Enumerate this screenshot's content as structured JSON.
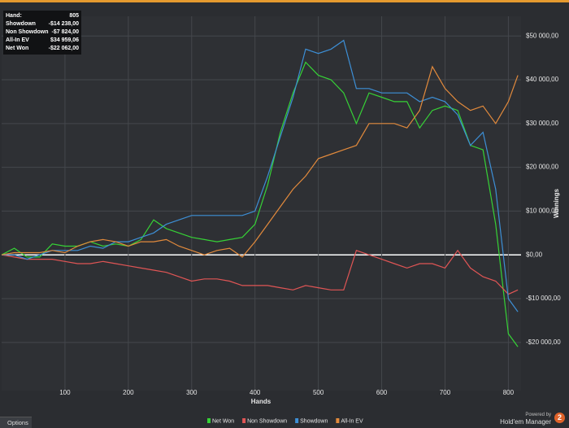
{
  "chart_data": {
    "type": "line",
    "x_label": "Hands",
    "y_label": "Winnings",
    "x": [
      0,
      20,
      40,
      60,
      80,
      100,
      120,
      140,
      160,
      180,
      200,
      220,
      240,
      260,
      280,
      300,
      320,
      340,
      360,
      380,
      400,
      420,
      440,
      460,
      480,
      500,
      520,
      540,
      560,
      580,
      600,
      620,
      640,
      660,
      680,
      700,
      720,
      740,
      760,
      780,
      800,
      815
    ],
    "series": [
      {
        "name": "Net Won",
        "color": "#36d236",
        "values": [
          0,
          1500,
          -500,
          -500,
          2500,
          2000,
          2000,
          3000,
          2000,
          2500,
          2000,
          3500,
          8000,
          6000,
          5000,
          4000,
          3500,
          3000,
          3500,
          4000,
          7000,
          16000,
          28000,
          37000,
          44000,
          41000,
          40000,
          37000,
          30000,
          37000,
          36000,
          35000,
          35000,
          29000,
          33000,
          34000,
          33000,
          25000,
          24000,
          7000,
          -18000,
          -21000
        ]
      },
      {
        "name": "Non Showdown",
        "color": "#e05555",
        "values": [
          0,
          -500,
          -1000,
          -1000,
          -1000,
          -1500,
          -2000,
          -2000,
          -1500,
          -2000,
          -2500,
          -3000,
          -3500,
          -4000,
          -5000,
          -6000,
          -5500,
          -5500,
          -6000,
          -7000,
          -7000,
          -7000,
          -7500,
          -8000,
          -7000,
          -7500,
          -8000,
          -8000,
          1000,
          0,
          -1000,
          -2000,
          -3000,
          -2000,
          -2000,
          -3000,
          1000,
          -3000,
          -5000,
          -6000,
          -9000,
          -8000
        ]
      },
      {
        "name": "Showdown",
        "color": "#3d8fd6",
        "values": [
          0,
          0,
          -1000,
          0,
          1000,
          1000,
          1000,
          2000,
          1500,
          3000,
          3000,
          4000,
          5000,
          7000,
          8000,
          9000,
          9000,
          9000,
          9000,
          9000,
          10000,
          18000,
          27000,
          36000,
          47000,
          46000,
          47000,
          49000,
          38000,
          38000,
          37000,
          37000,
          37000,
          35000,
          36000,
          35000,
          32000,
          25000,
          28000,
          15000,
          -10000,
          -13000
        ]
      },
      {
        "name": "All-In EV",
        "color": "#e28a3c",
        "values": [
          0,
          500,
          500,
          500,
          1000,
          500,
          2000,
          3000,
          3500,
          3000,
          2000,
          3000,
          3000,
          3500,
          2000,
          1000,
          0,
          1000,
          1500,
          -500,
          3000,
          7000,
          11000,
          15000,
          18000,
          22000,
          23000,
          24000,
          25000,
          30000,
          30000,
          30000,
          29000,
          33000,
          43000,
          38000,
          35000,
          33000,
          34000,
          30000,
          35000,
          41000
        ]
      }
    ],
    "xlim": [
      0,
      820
    ],
    "xticks": [
      100,
      200,
      300,
      400,
      500,
      600,
      700,
      800
    ],
    "ylim": [
      -31000,
      54500
    ],
    "yticks": [
      {
        "value": -20000,
        "label": "-$20 000,00"
      },
      {
        "value": -10000,
        "label": "-$10 000,00"
      },
      {
        "value": 0,
        "label": "$0,00"
      },
      {
        "value": 10000,
        "label": "$10 000,00"
      },
      {
        "value": 20000,
        "label": "$20 000,00"
      },
      {
        "value": 30000,
        "label": "$30 000,00"
      },
      {
        "value": 40000,
        "label": "$40 000,00"
      },
      {
        "value": 50000,
        "label": "$50 000,00"
      }
    ],
    "grid": true
  },
  "stats": {
    "rows": [
      [
        "Hand:",
        "805"
      ],
      [
        "Showdown",
        "-$14 238,00"
      ],
      [
        "Non Showdown",
        "-$7 824,00"
      ],
      [
        "All-In EV",
        "$34 959,06"
      ],
      [
        "Net Won",
        "-$22 062,00"
      ]
    ]
  },
  "ui": {
    "options": "Options",
    "powered_by": "Powered by",
    "brand": "Hold'em Manager",
    "badge": "2"
  }
}
